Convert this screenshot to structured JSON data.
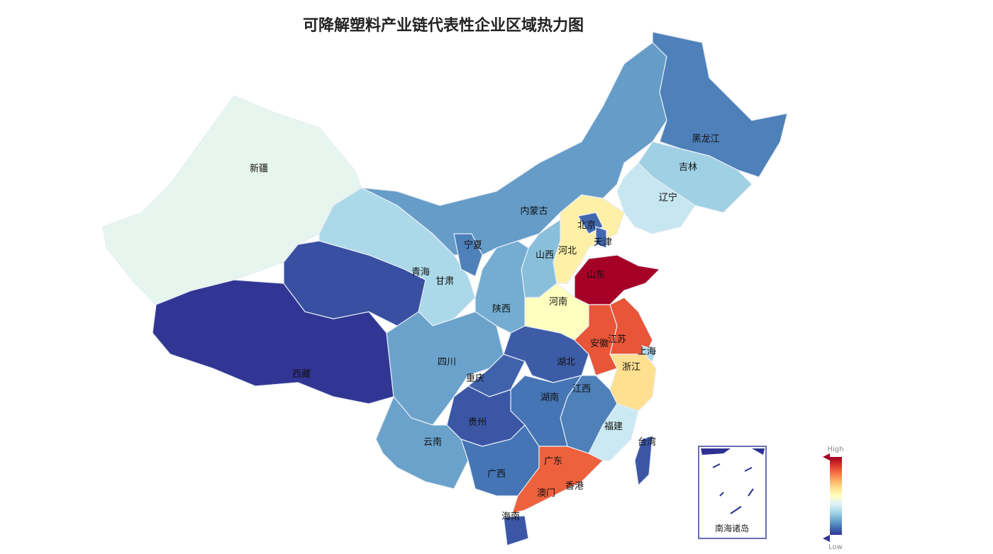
{
  "title": "可降解塑料产业链代表性企业区域热力图",
  "legend": {
    "high": "High",
    "low": "Low",
    "colors": [
      "#313695",
      "#4575b4",
      "#74add1",
      "#abd9e9",
      "#e0f3f8",
      "#ffffbf",
      "#fee090",
      "#fdae61",
      "#f46d43",
      "#d73027",
      "#a50026"
    ]
  },
  "inset_label": "南海诸岛",
  "regions": [
    {
      "name": "新疆",
      "level": 0.42
    },
    {
      "name": "西藏",
      "level": 0.0
    },
    {
      "name": "青海",
      "level": 0.04
    },
    {
      "name": "甘肃",
      "level": 0.3
    },
    {
      "name": "内蒙古",
      "level": 0.17
    },
    {
      "name": "黑龙江",
      "level": 0.12
    },
    {
      "name": "吉林",
      "level": 0.28
    },
    {
      "name": "辽宁",
      "level": 0.35
    },
    {
      "name": "河北",
      "level": 0.55
    },
    {
      "name": "北京",
      "level": 0.08
    },
    {
      "name": "天津",
      "level": 0.08
    },
    {
      "name": "山西",
      "level": 0.24
    },
    {
      "name": "山东",
      "level": 1.0
    },
    {
      "name": "河南",
      "level": 0.5
    },
    {
      "name": "陕西",
      "level": 0.2
    },
    {
      "name": "宁夏",
      "level": 0.12
    },
    {
      "name": "四川",
      "level": 0.18
    },
    {
      "name": "重庆",
      "level": 0.07
    },
    {
      "name": "湖北",
      "level": 0.06
    },
    {
      "name": "安徽",
      "level": 0.84
    },
    {
      "name": "江苏",
      "level": 0.84
    },
    {
      "name": "上海",
      "level": 0.3
    },
    {
      "name": "浙江",
      "level": 0.6
    },
    {
      "name": "江西",
      "level": 0.12
    },
    {
      "name": "湖南",
      "level": 0.1
    },
    {
      "name": "贵州",
      "level": 0.05
    },
    {
      "name": "云南",
      "level": 0.18
    },
    {
      "name": "广西",
      "level": 0.1
    },
    {
      "name": "广东",
      "level": 0.82
    },
    {
      "name": "福建",
      "level": 0.36
    },
    {
      "name": "台湾",
      "level": 0.05
    },
    {
      "name": "海南",
      "level": 0.05
    }
  ],
  "labels_only": [
    "香港",
    "澳门"
  ]
}
